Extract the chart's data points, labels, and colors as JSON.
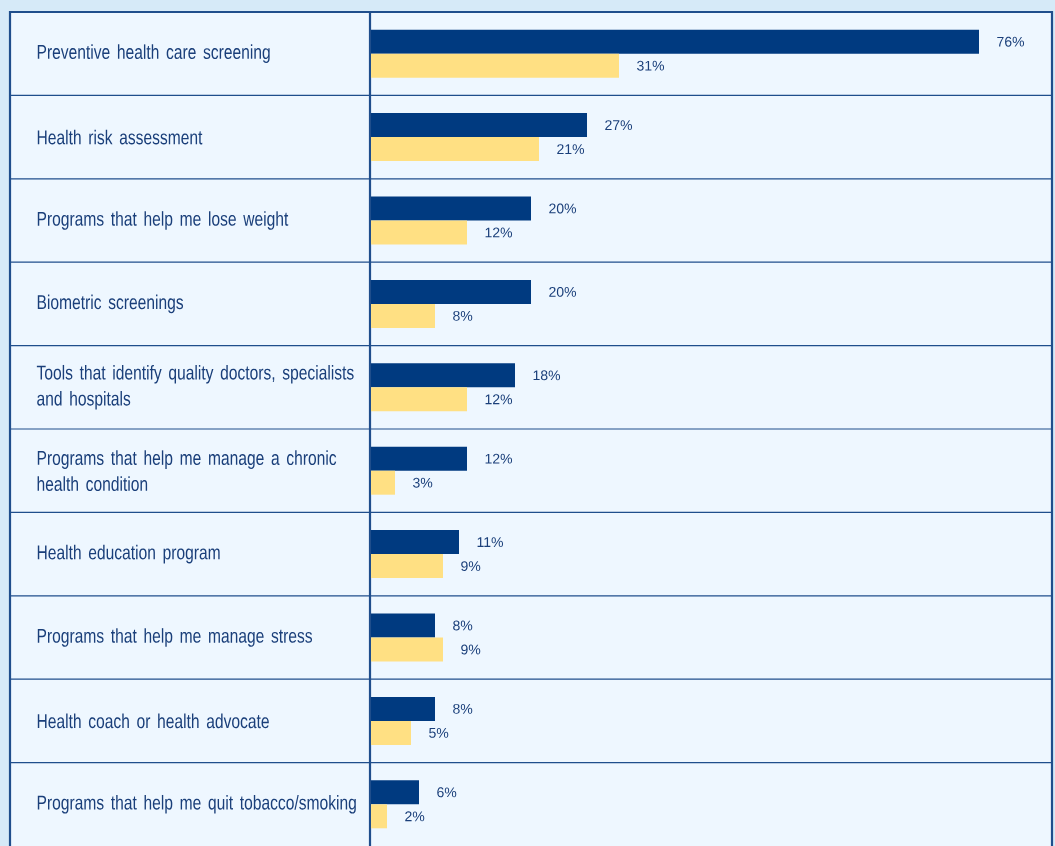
{
  "chart_data": {
    "type": "bar",
    "orientation": "horizontal",
    "data_labels": true,
    "categories": [
      "Preventive health care screening",
      "Health risk assessment",
      "Programs that help me lose weight",
      "Biometric screenings",
      "Tools that identify quality doctors, specialists and hospitals",
      "Programs that help me manage a chronic health condition",
      "Health education program",
      "Programs that help me manage stress",
      "Health coach or health advocate",
      "Programs that help me quit tobacco/smoking"
    ],
    "series": [
      {
        "color": "#003a80",
        "values": [
          76,
          27,
          20,
          20,
          18,
          12,
          11,
          8,
          8,
          6
        ],
        "value_labels": [
          "76%",
          "27%",
          "20%",
          "20%",
          "18%",
          "12%",
          "11%",
          "8%",
          "8%",
          "6%"
        ]
      },
      {
        "color": "#ffe083",
        "values": [
          31,
          21,
          12,
          8,
          12,
          3,
          9,
          9,
          5,
          2
        ],
        "value_labels": [
          "31%",
          "21%",
          "12%",
          "8%",
          "12%",
          "3%",
          "9%",
          "9%",
          "5%",
          "2%"
        ]
      }
    ],
    "grid": "y"
  }
}
